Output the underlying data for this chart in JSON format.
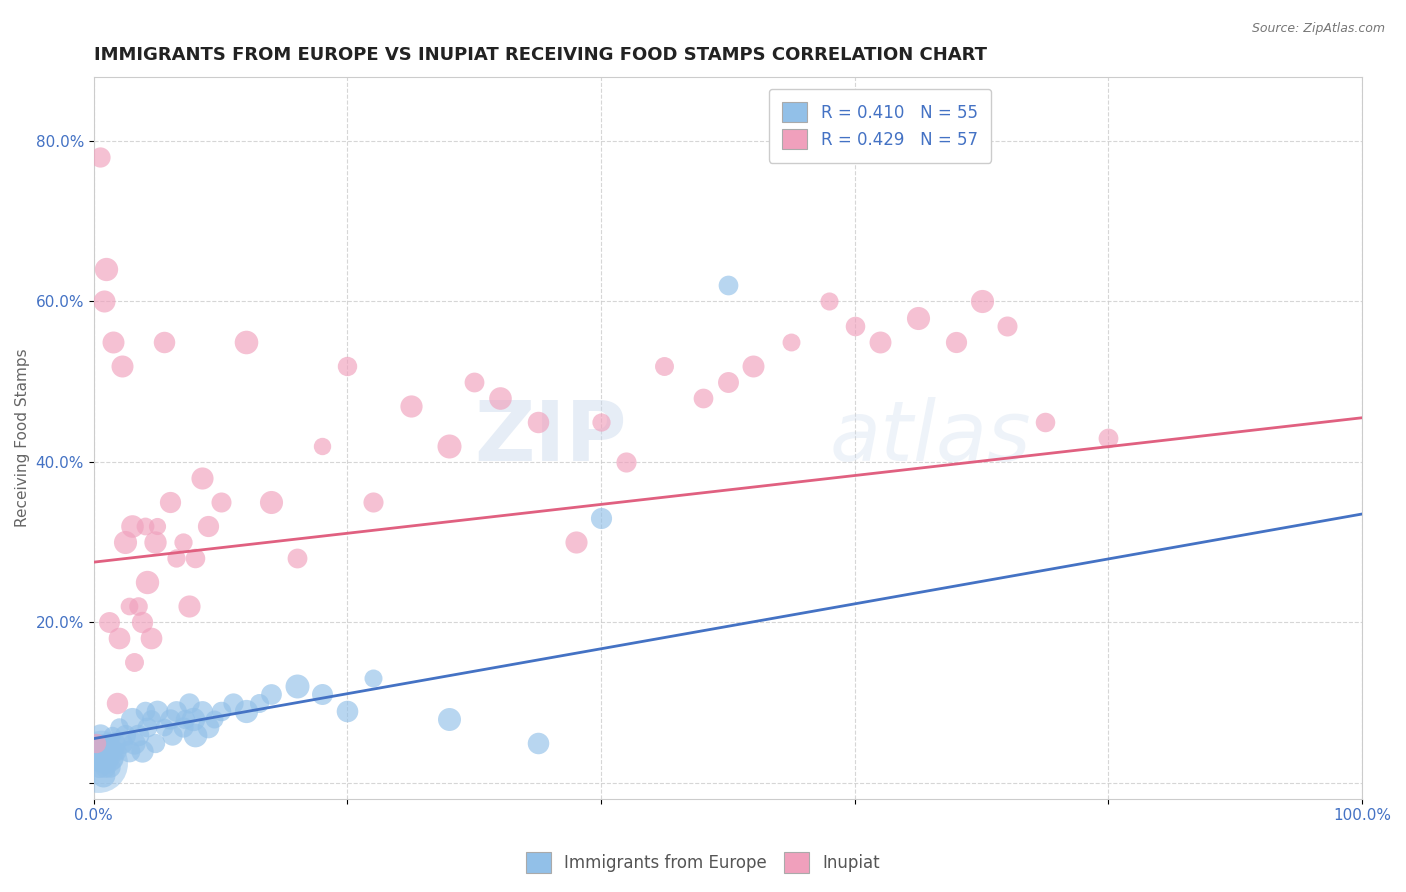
{
  "title": "IMMIGRANTS FROM EUROPE VS INUPIAT RECEIVING FOOD STAMPS CORRELATION CHART",
  "source": "Source: ZipAtlas.com",
  "ylabel": "Receiving Food Stamps",
  "xlim": [
    0.0,
    1.0
  ],
  "ylim": [
    -0.02,
    0.88
  ],
  "xticks": [
    0.0,
    0.2,
    0.4,
    0.6,
    0.8,
    1.0
  ],
  "xticklabels": [
    "0.0%",
    "",
    "",
    "",
    "",
    "100.0%"
  ],
  "yticks": [
    0.0,
    0.2,
    0.4,
    0.6,
    0.8
  ],
  "yticklabels": [
    "",
    "20.0%",
    "40.0%",
    "60.0%",
    "80.0%"
  ],
  "blue_color": "#92C0E8",
  "pink_color": "#F0A0BC",
  "blue_line_color": "#4472C4",
  "pink_line_color": "#E06080",
  "r_blue": 0.41,
  "n_blue": 55,
  "r_pink": 0.429,
  "n_pink": 57,
  "watermark_zip": "ZIP",
  "watermark_atlas": "atlas",
  "legend_label_blue": "Immigrants from Europe",
  "legend_label_pink": "Inupiat",
  "blue_line_x0": 0.0,
  "blue_line_y0": 0.055,
  "blue_line_x1": 1.0,
  "blue_line_y1": 0.335,
  "pink_line_x0": 0.0,
  "pink_line_y0": 0.275,
  "pink_line_x1": 1.0,
  "pink_line_y1": 0.455,
  "blue_scatter": [
    [
      0.001,
      0.03
    ],
    [
      0.002,
      0.05
    ],
    [
      0.003,
      0.04
    ],
    [
      0.004,
      0.02
    ],
    [
      0.005,
      0.06
    ],
    [
      0.006,
      0.03
    ],
    [
      0.007,
      0.01
    ],
    [
      0.008,
      0.04
    ],
    [
      0.009,
      0.02
    ],
    [
      0.01,
      0.05
    ],
    [
      0.011,
      0.03
    ],
    [
      0.012,
      0.04
    ],
    [
      0.013,
      0.02
    ],
    [
      0.014,
      0.06
    ],
    [
      0.015,
      0.03
    ],
    [
      0.016,
      0.05
    ],
    [
      0.018,
      0.04
    ],
    [
      0.02,
      0.07
    ],
    [
      0.022,
      0.05
    ],
    [
      0.025,
      0.06
    ],
    [
      0.028,
      0.04
    ],
    [
      0.03,
      0.08
    ],
    [
      0.032,
      0.05
    ],
    [
      0.035,
      0.06
    ],
    [
      0.038,
      0.04
    ],
    [
      0.04,
      0.09
    ],
    [
      0.042,
      0.07
    ],
    [
      0.045,
      0.08
    ],
    [
      0.048,
      0.05
    ],
    [
      0.05,
      0.09
    ],
    [
      0.055,
      0.07
    ],
    [
      0.06,
      0.08
    ],
    [
      0.062,
      0.06
    ],
    [
      0.065,
      0.09
    ],
    [
      0.07,
      0.07
    ],
    [
      0.072,
      0.08
    ],
    [
      0.075,
      0.1
    ],
    [
      0.078,
      0.08
    ],
    [
      0.08,
      0.06
    ],
    [
      0.085,
      0.09
    ],
    [
      0.09,
      0.07
    ],
    [
      0.095,
      0.08
    ],
    [
      0.1,
      0.09
    ],
    [
      0.11,
      0.1
    ],
    [
      0.12,
      0.09
    ],
    [
      0.13,
      0.1
    ],
    [
      0.14,
      0.11
    ],
    [
      0.16,
      0.12
    ],
    [
      0.18,
      0.11
    ],
    [
      0.2,
      0.09
    ],
    [
      0.22,
      0.13
    ],
    [
      0.28,
      0.08
    ],
    [
      0.35,
      0.05
    ],
    [
      0.4,
      0.33
    ],
    [
      0.5,
      0.62
    ]
  ],
  "pink_scatter": [
    [
      0.002,
      0.05
    ],
    [
      0.005,
      0.78
    ],
    [
      0.008,
      0.6
    ],
    [
      0.01,
      0.64
    ],
    [
      0.012,
      0.2
    ],
    [
      0.015,
      0.55
    ],
    [
      0.018,
      0.1
    ],
    [
      0.02,
      0.18
    ],
    [
      0.022,
      0.52
    ],
    [
      0.025,
      0.3
    ],
    [
      0.028,
      0.22
    ],
    [
      0.03,
      0.32
    ],
    [
      0.032,
      0.15
    ],
    [
      0.035,
      0.22
    ],
    [
      0.038,
      0.2
    ],
    [
      0.04,
      0.32
    ],
    [
      0.042,
      0.25
    ],
    [
      0.045,
      0.18
    ],
    [
      0.048,
      0.3
    ],
    [
      0.05,
      0.32
    ],
    [
      0.055,
      0.55
    ],
    [
      0.06,
      0.35
    ],
    [
      0.065,
      0.28
    ],
    [
      0.07,
      0.3
    ],
    [
      0.075,
      0.22
    ],
    [
      0.08,
      0.28
    ],
    [
      0.085,
      0.38
    ],
    [
      0.09,
      0.32
    ],
    [
      0.1,
      0.35
    ],
    [
      0.12,
      0.55
    ],
    [
      0.14,
      0.35
    ],
    [
      0.16,
      0.28
    ],
    [
      0.18,
      0.42
    ],
    [
      0.2,
      0.52
    ],
    [
      0.22,
      0.35
    ],
    [
      0.25,
      0.47
    ],
    [
      0.28,
      0.42
    ],
    [
      0.3,
      0.5
    ],
    [
      0.32,
      0.48
    ],
    [
      0.35,
      0.45
    ],
    [
      0.38,
      0.3
    ],
    [
      0.4,
      0.45
    ],
    [
      0.42,
      0.4
    ],
    [
      0.45,
      0.52
    ],
    [
      0.48,
      0.48
    ],
    [
      0.5,
      0.5
    ],
    [
      0.52,
      0.52
    ],
    [
      0.55,
      0.55
    ],
    [
      0.58,
      0.6
    ],
    [
      0.6,
      0.57
    ],
    [
      0.62,
      0.55
    ],
    [
      0.65,
      0.58
    ],
    [
      0.68,
      0.55
    ],
    [
      0.7,
      0.6
    ],
    [
      0.72,
      0.57
    ],
    [
      0.75,
      0.45
    ],
    [
      0.8,
      0.43
    ]
  ],
  "title_fontsize": 13,
  "label_fontsize": 11,
  "tick_fontsize": 11,
  "legend_fontsize": 12,
  "dot_size": 200
}
